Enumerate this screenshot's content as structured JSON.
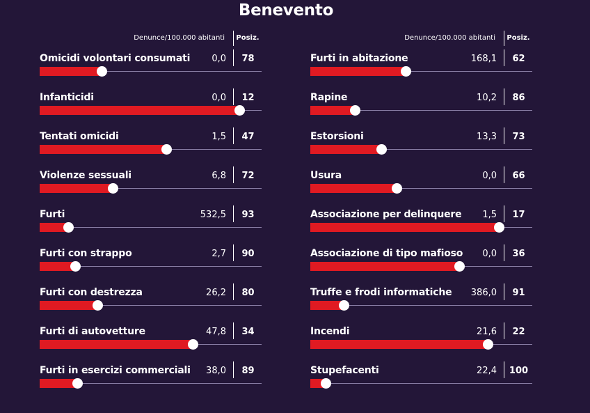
{
  "title": "Benevento",
  "header": {
    "denunce_label": "Denunce/100.000 abitanti",
    "posiz_label": "Posiz."
  },
  "colors": {
    "background": "#231638",
    "bar": "#e01a22",
    "knob": "#ffffff",
    "track": "#8a7fa6"
  },
  "chart_data": {
    "type": "bar",
    "title": "Benevento",
    "columns": [
      "Denunce/100.000 abitanti",
      "Posiz."
    ],
    "bar_encoding": "rank position scale 1-100",
    "left": [
      {
        "label": "Omicidi volontari consumati",
        "value": "0,0",
        "position": 78,
        "fill": 0.28
      },
      {
        "label": "Infanticidi",
        "value": "0,0",
        "position": 12,
        "fill": 0.9
      },
      {
        "label": "Tentati omicidi",
        "value": "1,5",
        "position": 47,
        "fill": 0.57
      },
      {
        "label": "Violenze sessuali",
        "value": "6,8",
        "position": 72,
        "fill": 0.33
      },
      {
        "label": "Furti",
        "value": "532,5",
        "position": 93,
        "fill": 0.13
      },
      {
        "label": "Furti con strappo",
        "value": "2,7",
        "position": 90,
        "fill": 0.16
      },
      {
        "label": "Furti con destrezza",
        "value": "26,2",
        "position": 80,
        "fill": 0.26
      },
      {
        "label": "Furti di autovetture",
        "value": "47,8",
        "position": 34,
        "fill": 0.69
      },
      {
        "label": "Furti in esercizi commerciali",
        "value": "38,0",
        "position": 89,
        "fill": 0.17
      }
    ],
    "right": [
      {
        "label": "Furti in abitazione",
        "value": "168,1",
        "position": 62,
        "fill": 0.43
      },
      {
        "label": "Rapine",
        "value": "10,2",
        "position": 86,
        "fill": 0.2
      },
      {
        "label": "Estorsioni",
        "value": "13,3",
        "position": 73,
        "fill": 0.32
      },
      {
        "label": "Usura",
        "value": "0,0",
        "position": 66,
        "fill": 0.39
      },
      {
        "label": "Associazione per delinquere",
        "value": "1,5",
        "position": 17,
        "fill": 0.85
      },
      {
        "label": "Associazione di tipo mafioso",
        "value": "0,0",
        "position": 36,
        "fill": 0.67
      },
      {
        "label": "Truffe e frodi informatiche",
        "value": "386,0",
        "position": 91,
        "fill": 0.15
      },
      {
        "label": "Incendi",
        "value": "21,6",
        "position": 22,
        "fill": 0.8
      },
      {
        "label": "Stupefacenti",
        "value": "22,4",
        "position": 100,
        "fill": 0.07
      }
    ]
  }
}
